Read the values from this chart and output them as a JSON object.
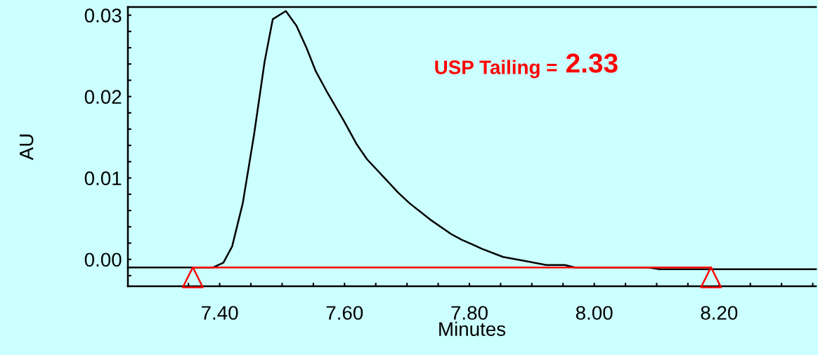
{
  "chart_data": {
    "type": "line",
    "xlabel": "Minutes",
    "ylabel": "AU",
    "annotations": [
      "USP Tailing =",
      "2.33"
    ],
    "series": [
      {
        "color": "#000000",
        "x": [
          7.253,
          7.389,
          7.406,
          7.42,
          7.437,
          7.455,
          7.472,
          7.485,
          7.506,
          7.523,
          7.539,
          7.554,
          7.571,
          7.599,
          7.619,
          7.636,
          7.686,
          7.704,
          7.737,
          7.771,
          7.788,
          7.806,
          7.82,
          7.854,
          7.897,
          7.923,
          7.953,
          7.969,
          8.087,
          8.103,
          8.355
        ],
        "values": [
          -0.001,
          -0.001,
          -0.0004,
          0.0016,
          0.0069,
          0.0153,
          0.0243,
          0.0295,
          0.0305,
          0.0287,
          0.026,
          0.0231,
          0.0207,
          0.017,
          0.0142,
          0.0123,
          0.0082,
          0.0069,
          0.0049,
          0.0031,
          0.0024,
          0.0018,
          0.0013,
          0.0003,
          -0.0003,
          -0.0007,
          -0.0007,
          -0.001,
          -0.001,
          -0.0012,
          -0.0012
        ]
      },
      {
        "color": "#ff0000",
        "x": [
          7.357,
          8.187
        ],
        "values": [
          -0.001,
          -0.001
        ]
      },
      {
        "type": "scatter",
        "color": "#ff0000",
        "marker": "triangle",
        "x": [
          7.357,
          8.187
        ],
        "values": [
          -0.0022,
          -0.0022
        ]
      }
    ],
    "xlim": [
      7.253,
      8.355
    ],
    "ylim": [
      -0.0033,
      0.031
    ],
    "xticks": [
      {
        "value": 7.35,
        "label": null
      },
      {
        "value": 7.4,
        "label": "7.40"
      },
      {
        "value": 7.45,
        "label": null
      },
      {
        "value": 7.5,
        "label": null
      },
      {
        "value": 7.55,
        "label": null
      },
      {
        "value": 7.6,
        "label": "7.60"
      },
      {
        "value": 7.65,
        "label": null
      },
      {
        "value": 7.7,
        "label": null
      },
      {
        "value": 7.75,
        "label": null
      },
      {
        "value": 7.8,
        "label": "7.80"
      },
      {
        "value": 7.85,
        "label": null
      },
      {
        "value": 7.9,
        "label": null
      },
      {
        "value": 7.95,
        "label": null
      },
      {
        "value": 8.0,
        "label": "8.00"
      },
      {
        "value": 8.05,
        "label": null
      },
      {
        "value": 8.1,
        "label": null
      },
      {
        "value": 8.15,
        "label": null
      },
      {
        "value": 8.2,
        "label": "8.20"
      },
      {
        "value": 8.25,
        "label": null
      },
      {
        "value": 8.3,
        "label": null
      },
      {
        "value": 8.35,
        "label": null
      }
    ],
    "yticks": [
      {
        "value": -0.002,
        "label": null
      },
      {
        "value": 0,
        "label": "0.00"
      },
      {
        "value": 0.002,
        "label": null
      },
      {
        "value": 0.004,
        "label": null
      },
      {
        "value": 0.006,
        "label": null
      },
      {
        "value": 0.008,
        "label": null
      },
      {
        "value": 0.01,
        "label": "0.01"
      },
      {
        "value": 0.012,
        "label": null
      },
      {
        "value": 0.014,
        "label": null
      },
      {
        "value": 0.016,
        "label": null
      },
      {
        "value": 0.018,
        "label": null
      },
      {
        "value": 0.02,
        "label": "0.02"
      },
      {
        "value": 0.022,
        "label": null
      },
      {
        "value": 0.024,
        "label": null
      },
      {
        "value": 0.026,
        "label": null
      },
      {
        "value": 0.028,
        "label": null
      },
      {
        "value": 0.03,
        "label": "0.03"
      }
    ],
    "grid": false,
    "legend": false
  }
}
